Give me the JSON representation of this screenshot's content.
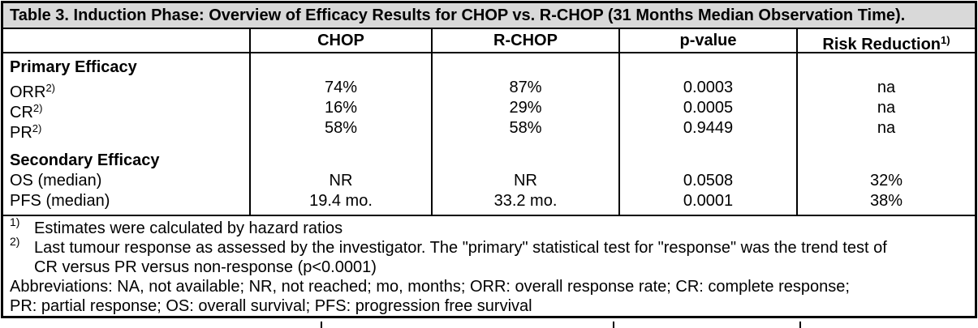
{
  "table": {
    "title": "Table 3. Induction Phase: Overview of Efficacy Results for CHOP vs. R-CHOP (31 Months Median Observation Time).",
    "columns": [
      {
        "label": "",
        "marker": ""
      },
      {
        "label": "CHOP",
        "marker": ""
      },
      {
        "label": "R-CHOP",
        "marker": ""
      },
      {
        "label": "p-value",
        "marker": ""
      },
      {
        "label": "Risk Reduction",
        "marker": "1)"
      }
    ],
    "sections": [
      {
        "heading": "Primary Efficacy",
        "rows": [
          {
            "label": "ORR",
            "marker": "2)",
            "values": [
              "74%",
              "87%",
              "0.0003",
              "na"
            ]
          },
          {
            "label": "CR",
            "marker": "2)",
            "values": [
              "16%",
              "29%",
              "0.0005",
              "na"
            ]
          },
          {
            "label": "PR",
            "marker": "2)",
            "values": [
              "58%",
              "58%",
              "0.9449",
              "na"
            ]
          }
        ]
      },
      {
        "heading": "Secondary Efficacy",
        "rows": [
          {
            "label": "OS (median)",
            "marker": "",
            "values": [
              "NR",
              "NR",
              "0.0508",
              "32%"
            ]
          },
          {
            "label": "PFS (median)",
            "marker": "",
            "values": [
              "19.4 mo.",
              "33.2 mo.",
              "0.0001",
              "38%"
            ]
          }
        ]
      }
    ],
    "footnotes": [
      {
        "marker": "1)",
        "lines": [
          "Estimates were calculated by hazard ratios"
        ]
      },
      {
        "marker": "2)",
        "lines": [
          "Last tumour response as assessed by the investigator. The \"primary\" statistical test for \"response\" was the trend test of",
          "CR versus PR versus non-response (p<0.0001)"
        ]
      },
      {
        "marker": "",
        "lines": [
          "Abbreviations: NA, not available; NR, not reached; mo, months; ORR: overall response rate; CR: complete response;",
          "PR: partial response; OS: overall survival; PFS: progression free survival"
        ]
      }
    ]
  },
  "colors": {
    "title_bg": "#d9d9d9",
    "border": "#000000",
    "text": "#000000",
    "page_bg": "#ffffff"
  }
}
